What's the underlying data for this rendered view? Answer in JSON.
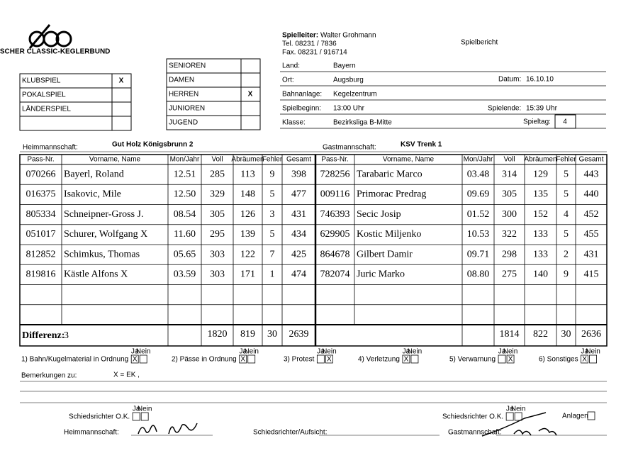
{
  "header": {
    "logo": "DEUTSCHER CLASSIC-KEGLERBUND",
    "spielleiter_label": "Spielleiter:",
    "spielleiter": "Walter Grohmann",
    "tel": "Tel. 08231 / 7836",
    "fax": "Fax. 08231 / 916714",
    "title": "Spielbericht"
  },
  "game_type": [
    {
      "label": "KLUBSPIEL",
      "mark": "X"
    },
    {
      "label": "POKALSPIEL"
    },
    {
      "label": "LÄNDERSPIEL"
    }
  ],
  "category": [
    {
      "label": "SENIOREN"
    },
    {
      "label": "DAMEN"
    },
    {
      "label": "HERREN",
      "mark": "X"
    },
    {
      "label": "JUNIOREN"
    },
    {
      "label": "JUGEND"
    }
  ],
  "fields": [
    {
      "label": "Land:",
      "value": "Bayern"
    },
    {
      "label": "Ort:",
      "value": "Augsburg"
    },
    {
      "label": "Datum:",
      "value": "16.10.10"
    },
    {
      "label": "Bahnanlage:",
      "value": "Kegelzentrum"
    },
    {
      "label": "Spielbeginn:",
      "value": "13:00 Uhr"
    },
    {
      "label": "Spielende:",
      "value": "15:39 Uhr"
    },
    {
      "label": "Klasse:",
      "value": "Bezirksliga B-Mitte"
    },
    {
      "label": "Spieltag:",
      "value": "4"
    }
  ],
  "teams": {
    "home_label": "Heimmannschaft:",
    "home": "Gut Holz Königsbrunn 2",
    "guest_label": "Gastmannschaft:",
    "guest": "KSV Trenk 1"
  },
  "table": {
    "columns": [
      "Pass-Nr.",
      "Vorname, Name",
      "Mon/Jahr",
      "Voll",
      "Abräumen",
      "Fehler",
      "Gesamt"
    ],
    "home_rows": [
      [
        "070266",
        "Bayerl, Roland",
        "12.51",
        "285",
        "113",
        "9",
        "398"
      ],
      [
        "016375",
        "Isakovic, Mile",
        "12.50",
        "329",
        "148",
        "5",
        "477"
      ],
      [
        "805334",
        "Schneipner-Gross J.",
        "08.54",
        "305",
        "126",
        "3",
        "431"
      ],
      [
        "051017",
        "Schurer, Wolfgang X",
        "11.60",
        "295",
        "139",
        "5",
        "434"
      ],
      [
        "812852",
        "Schimkus, Thomas",
        "05.65",
        "303",
        "122",
        "7",
        "425"
      ],
      [
        "819816",
        "Kästle Alfons  X",
        "03.59",
        "303",
        "171",
        "1",
        "474"
      ]
    ],
    "guest_rows": [
      [
        "728256",
        "Tarabaric Marco",
        "03.48",
        "314",
        "129",
        "5",
        "443"
      ],
      [
        "009116",
        "Primorac Predrag",
        "09.69",
        "305",
        "135",
        "5",
        "440"
      ],
      [
        "746393",
        "Secic Josip",
        "01.52",
        "300",
        "152",
        "4",
        "452"
      ],
      [
        "629905",
        "Kostic Miljenko",
        "10.53",
        "322",
        "133",
        "5",
        "455"
      ],
      [
        "864678",
        "Gilbert Damir",
        "09.71",
        "298",
        "133",
        "2",
        "431"
      ],
      [
        "782074",
        "Juric Marko",
        "08.80",
        "275",
        "140",
        "9",
        "415"
      ]
    ],
    "diff_label": "Differenz:",
    "diff": "3",
    "home_totals": [
      "1820",
      "819",
      "30",
      "2639"
    ],
    "guest_totals": [
      "1814",
      "822",
      "30",
      "2636"
    ]
  },
  "checks": {
    "ja": "Ja",
    "nein": "Nein",
    "items": [
      {
        "label": "1) Bahn/Kugelmaterial in Ordnung",
        "ja_mark": "X"
      },
      {
        "label": "2) Pässe in Ordnung",
        "ja_mark": "X"
      },
      {
        "label": "3) Protest",
        "nein_mark": "X"
      },
      {
        "label": "4) Verletzung",
        "ja_mark": "X"
      },
      {
        "label": "5) Verwarnung",
        "nein_mark": "X"
      },
      {
        "label": "6) Sonstiges",
        "ja_mark": "X"
      }
    ]
  },
  "remarks": {
    "label": "Bemerkungen zu:",
    "text": "X = EK ,"
  },
  "signatures": {
    "referee_ok": "Schiedsrichter O.K.",
    "anlagen": "Anlagen",
    "home": "Heimmannschaft:",
    "referee": "Schiedsrichter/Aufsicht:",
    "guest": "Gastmannschaft:"
  }
}
